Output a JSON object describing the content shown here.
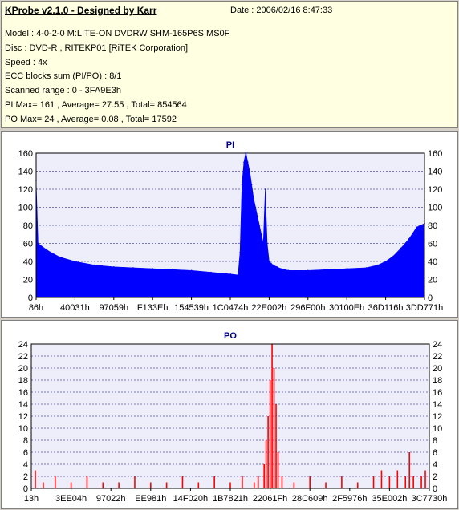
{
  "header": {
    "title": "KProbe v2.1.0 - Designed by Karr",
    "date": "Date : 2006/02/16 8:47:33",
    "model": "Model : 4-0-2-0 M:LITE-ON DVDRW SHM-165P6S MS0F",
    "disc": "Disc : DVD-R , RITEKP01 [RiTEK Corporation]",
    "speed": "Speed : 4x",
    "ecc": "ECC blocks sum (PI/PO) : 8/1",
    "range": "Scanned range : 0 - 3FA9E3h",
    "pi_stats": "PI Max= 161 , Average= 27.55 , Total= 854564",
    "po_stats": "PO Max= 24 , Average= 0.08 , Total= 17592"
  },
  "colors": {
    "pi": "#0000ff",
    "po": "#ff0000",
    "plot_bg": "#eeeefa",
    "grid": "#00007f",
    "title": "#000080"
  },
  "chart_data": [
    {
      "type": "area",
      "title": "PI",
      "ylim": [
        0,
        160
      ],
      "yticks": [
        0,
        20,
        40,
        60,
        80,
        100,
        120,
        140,
        160
      ],
      "xlabels": [
        "86h",
        "40031h",
        "97059h",
        "F133Eh",
        "154539h",
        "1C0474h",
        "22E002h",
        "296F00h",
        "30100Eh",
        "36D116h",
        "3DD771h"
      ],
      "grid": true,
      "x": [
        0,
        0.005,
        0.03,
        0.06,
        0.1,
        0.15,
        0.2,
        0.25,
        0.3,
        0.35,
        0.4,
        0.45,
        0.5,
        0.52,
        0.525,
        0.53,
        0.535,
        0.54,
        0.545,
        0.55,
        0.555,
        0.56,
        0.565,
        0.57,
        0.575,
        0.58,
        0.585,
        0.59,
        0.595,
        0.6,
        0.605,
        0.61,
        0.62,
        0.63,
        0.65,
        0.7,
        0.75,
        0.8,
        0.85,
        0.88,
        0.9,
        0.92,
        0.94,
        0.96,
        0.98,
        1.0
      ],
      "values": [
        130,
        60,
        52,
        45,
        40,
        36,
        34,
        33,
        32,
        31,
        30,
        28,
        26,
        25,
        50,
        125,
        150,
        161,
        150,
        140,
        125,
        110,
        100,
        90,
        80,
        70,
        60,
        120,
        60,
        40,
        38,
        36,
        34,
        32,
        30,
        30,
        31,
        32,
        33,
        36,
        40,
        46,
        55,
        65,
        78,
        82
      ]
    },
    {
      "type": "bar",
      "title": "PO",
      "ylim": [
        0,
        24
      ],
      "yticks": [
        0,
        2,
        4,
        6,
        8,
        10,
        12,
        14,
        16,
        18,
        20,
        22,
        24
      ],
      "xlabels": [
        "13h",
        "3EE04h",
        "97022h",
        "EE981h",
        "14F020h",
        "1B7821h",
        "22061Fh",
        "28C609h",
        "2F5976h",
        "35E002h",
        "3C7730h"
      ],
      "grid": true,
      "x": [
        0.01,
        0.03,
        0.06,
        0.1,
        0.14,
        0.18,
        0.22,
        0.26,
        0.3,
        0.34,
        0.38,
        0.42,
        0.46,
        0.5,
        0.53,
        0.56,
        0.57,
        0.585,
        0.59,
        0.595,
        0.6,
        0.605,
        0.61,
        0.615,
        0.62,
        0.63,
        0.66,
        0.7,
        0.74,
        0.78,
        0.82,
        0.86,
        0.88,
        0.9,
        0.92,
        0.94,
        0.95,
        0.96,
        0.98,
        0.99
      ],
      "values": [
        3,
        1,
        2,
        1,
        2,
        1,
        1,
        2,
        1,
        1,
        2,
        1,
        2,
        1,
        2,
        1,
        2,
        4,
        8,
        12,
        18,
        24,
        20,
        14,
        6,
        2,
        1,
        2,
        1,
        2,
        1,
        2,
        3,
        2,
        3,
        2,
        6,
        2,
        2,
        3
      ]
    }
  ]
}
